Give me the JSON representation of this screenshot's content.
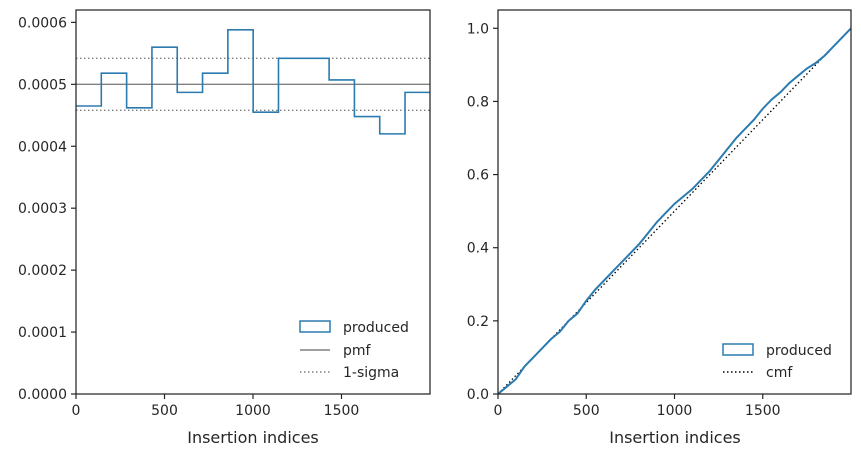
{
  "colors": {
    "produced": "#2b7bb0",
    "pmf": "#808080",
    "sigma": "#808080",
    "cmf": "#000000",
    "axes": "#262626",
    "text": "#262626"
  },
  "chart_data": [
    {
      "type": "histogram-step",
      "xlabel": "Insertion indices",
      "ylabel": "",
      "xlim": [
        0,
        2000
      ],
      "ylim": [
        0,
        0.00062
      ],
      "xticks": [
        0,
        500,
        1000,
        1500
      ],
      "xtick_labels": [
        "0",
        "500",
        "1000",
        "1500"
      ],
      "yticks": [
        0,
        0.0001,
        0.0002,
        0.0003,
        0.0004,
        0.0005,
        0.0006
      ],
      "ytick_labels": [
        "0.0000",
        "0.0001",
        "0.0002",
        "0.0003",
        "0.0004",
        "0.0005",
        "0.0006"
      ],
      "bin_edges": [
        0,
        143,
        286,
        429,
        572,
        715,
        858,
        1001,
        1144,
        1287,
        1430,
        1573,
        1716,
        1859,
        2000
      ],
      "series": [
        {
          "name": "produced",
          "style": "step",
          "values": [
            0.000465,
            0.000518,
            0.000462,
            0.00056,
            0.000487,
            0.000518,
            0.000588,
            0.000455,
            0.000542,
            0.000542,
            0.000507,
            0.000448,
            0.00042,
            0.000487
          ]
        },
        {
          "name": "pmf",
          "style": "solid",
          "y": 0.0005
        },
        {
          "name": "1-sigma",
          "style": "dotted",
          "y": [
            0.000458,
            0.000542
          ]
        }
      ],
      "legend": {
        "placement": "lower-right",
        "entries": [
          "produced",
          "pmf",
          "1-sigma"
        ]
      }
    },
    {
      "type": "line",
      "xlabel": "Insertion indices",
      "ylabel": "",
      "xlim": [
        0,
        2000
      ],
      "ylim": [
        0,
        1.05
      ],
      "xticks": [
        0,
        500,
        1000,
        1500
      ],
      "xtick_labels": [
        "0",
        "500",
        "1000",
        "1500"
      ],
      "yticks": [
        0,
        0.2,
        0.4,
        0.6,
        0.8,
        1.0
      ],
      "ytick_labels": [
        "0.0",
        "0.2",
        "0.4",
        "0.6",
        "0.8",
        "1.0"
      ],
      "series": [
        {
          "name": "produced",
          "style": "solid",
          "x": [
            0,
            50,
            100,
            150,
            200,
            250,
            300,
            350,
            400,
            450,
            500,
            550,
            600,
            650,
            700,
            750,
            800,
            850,
            900,
            950,
            1000,
            1050,
            1100,
            1150,
            1200,
            1250,
            1300,
            1350,
            1400,
            1450,
            1500,
            1550,
            1600,
            1650,
            1700,
            1750,
            1800,
            1850,
            1900,
            1950,
            2000
          ],
          "y": [
            0,
            0.02,
            0.04,
            0.075,
            0.1,
            0.125,
            0.15,
            0.17,
            0.2,
            0.22,
            0.255,
            0.285,
            0.31,
            0.335,
            0.36,
            0.385,
            0.41,
            0.44,
            0.47,
            0.495,
            0.52,
            0.54,
            0.56,
            0.585,
            0.61,
            0.64,
            0.67,
            0.7,
            0.725,
            0.75,
            0.78,
            0.805,
            0.825,
            0.85,
            0.87,
            0.89,
            0.905,
            0.925,
            0.95,
            0.975,
            1.0
          ]
        },
        {
          "name": "cmf",
          "style": "dotted",
          "x": [
            0,
            2000
          ],
          "y": [
            0,
            1.0
          ]
        }
      ],
      "legend": {
        "placement": "lower-right",
        "entries": [
          "produced",
          "cmf"
        ]
      }
    }
  ]
}
